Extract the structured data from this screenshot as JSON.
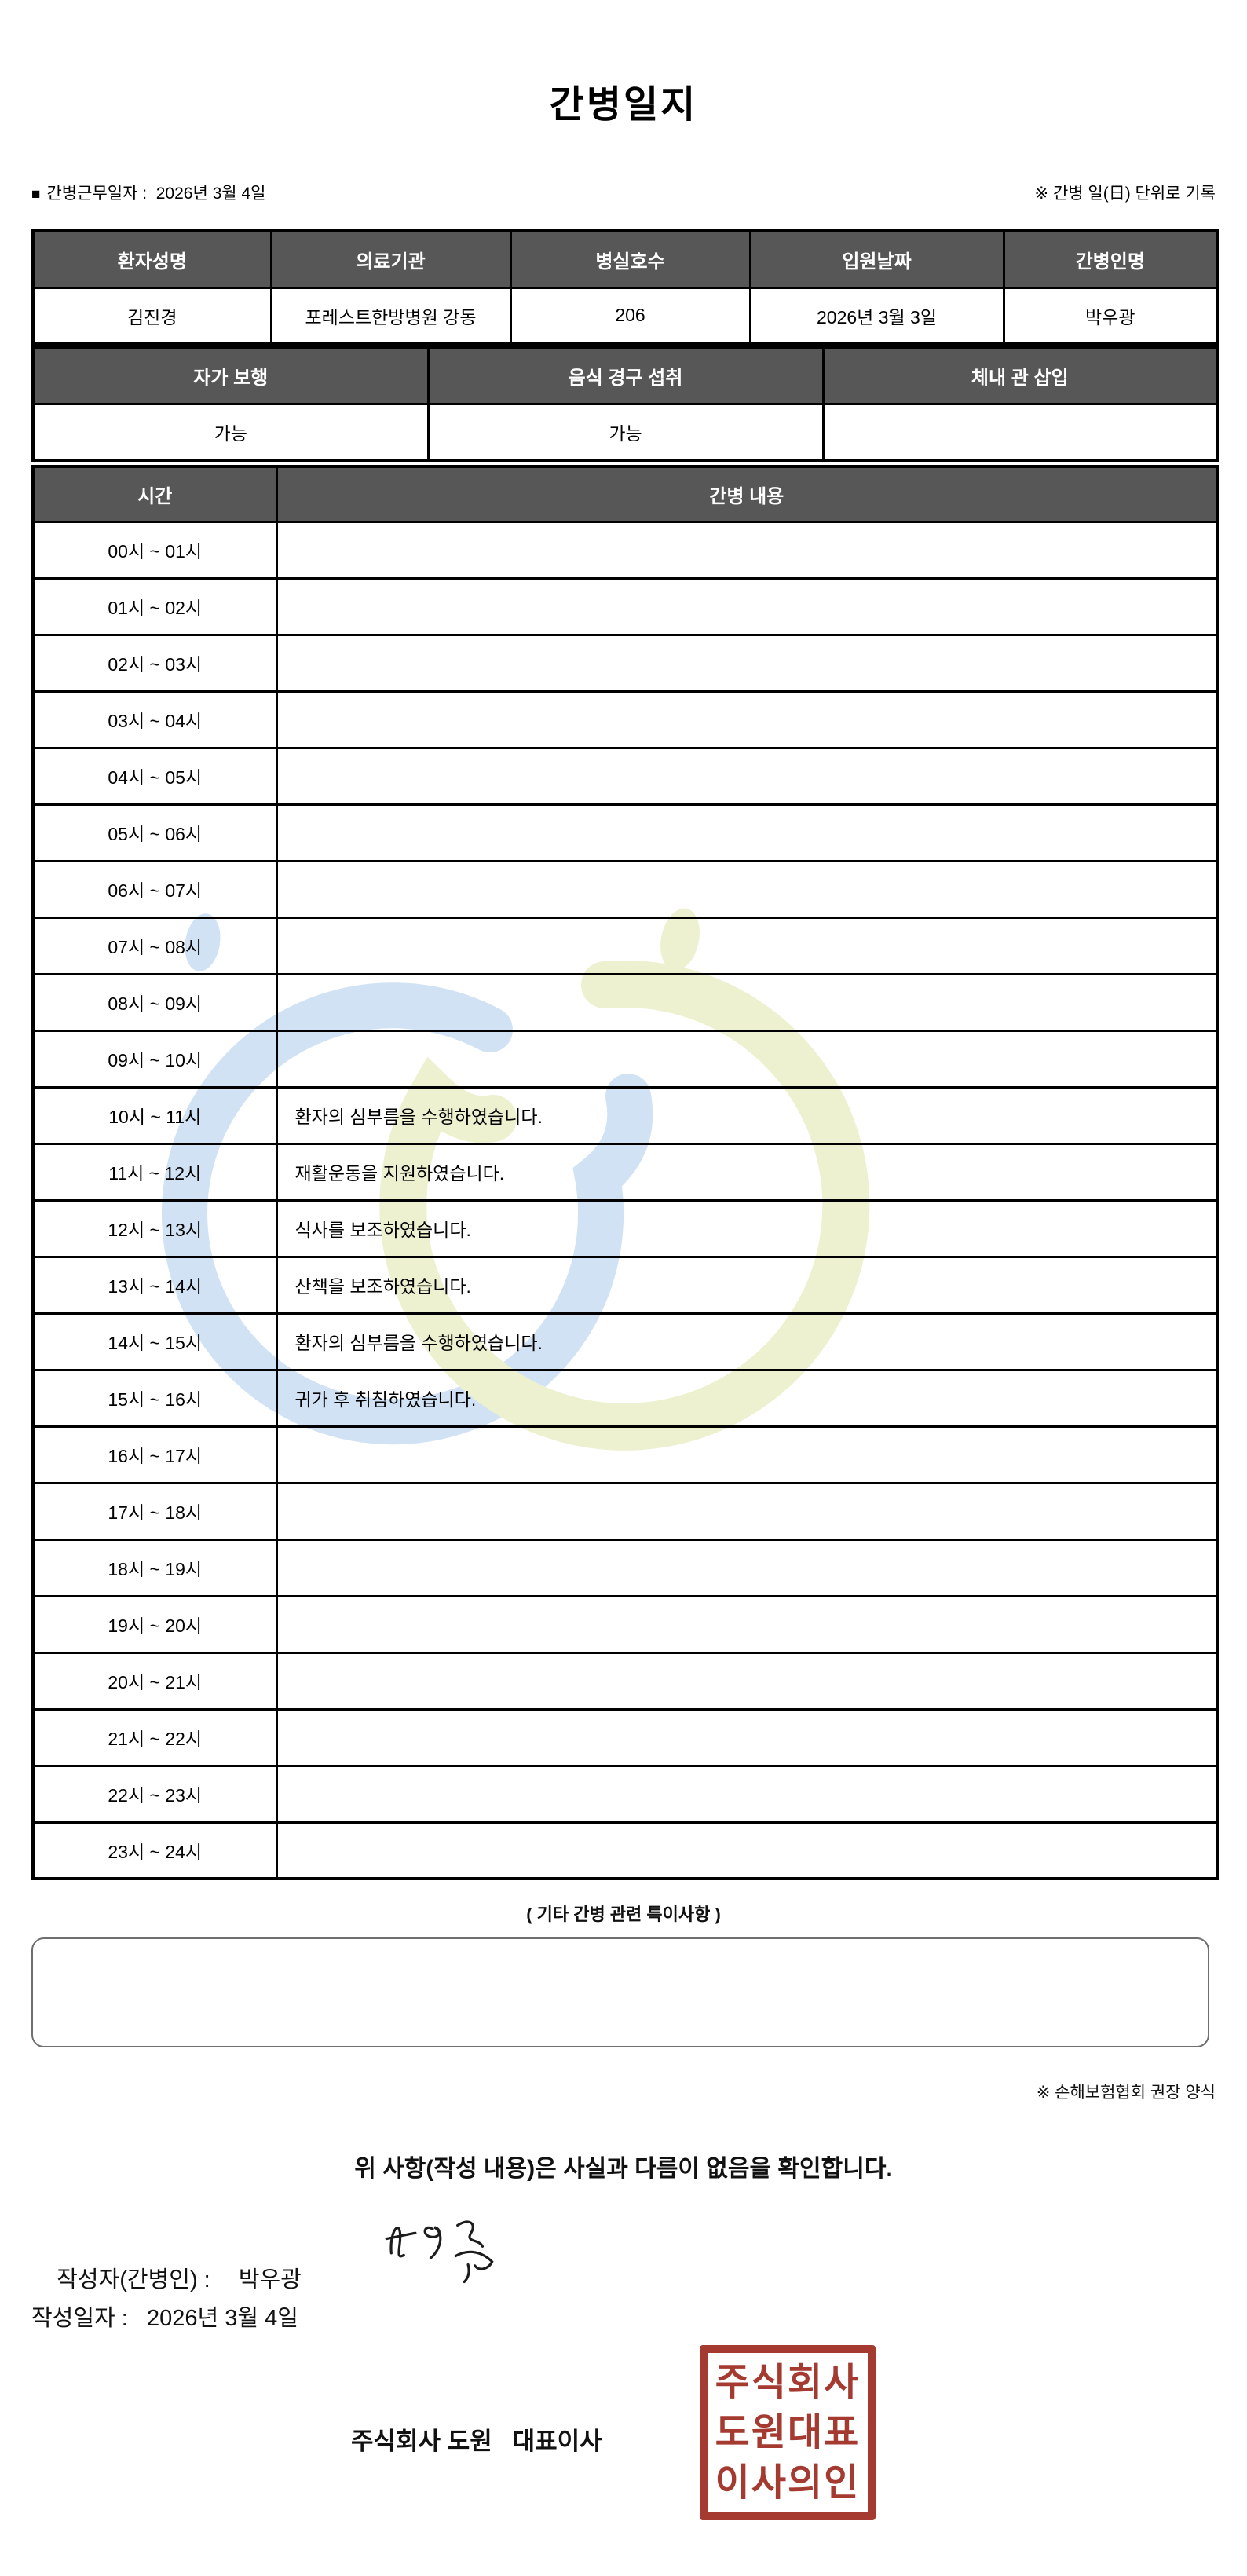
{
  "title": "간병일지",
  "meta": {
    "bullet": "■",
    "work_date_line": "간병근무일자 :  2026년 3월 4일",
    "unit_note": "※ 간병 일(日) 단위로 기록"
  },
  "patient_table": {
    "headers": [
      "환자성명",
      "의료기관",
      "병실호수",
      "입원날짜",
      "간병인명"
    ],
    "values": [
      "김진경",
      "포레스트한방병원 강동",
      "206",
      "2026년 3월 3일",
      "박우광"
    ]
  },
  "status_table": {
    "headers": [
      "자가 보행",
      "음식 경구 섭취",
      "체내 관 삽입"
    ],
    "values": [
      "가능",
      "가능",
      ""
    ]
  },
  "care_table": {
    "time_header": "시간",
    "content_header": "간병 내용",
    "rows": [
      {
        "time": "00시 ~ 01시",
        "content": ""
      },
      {
        "time": "01시 ~ 02시",
        "content": ""
      },
      {
        "time": "02시 ~ 03시",
        "content": ""
      },
      {
        "time": "03시 ~ 04시",
        "content": ""
      },
      {
        "time": "04시 ~ 05시",
        "content": ""
      },
      {
        "time": "05시 ~ 06시",
        "content": ""
      },
      {
        "time": "06시 ~ 07시",
        "content": ""
      },
      {
        "time": "07시 ~ 08시",
        "content": ""
      },
      {
        "time": "08시 ~ 09시",
        "content": ""
      },
      {
        "time": "09시 ~ 10시",
        "content": ""
      },
      {
        "time": "10시 ~ 11시",
        "content": "환자의 심부름을 수행하였습니다."
      },
      {
        "time": "11시 ~ 12시",
        "content": "재활운동을 지원하였습니다."
      },
      {
        "time": "12시 ~ 13시",
        "content": "식사를 보조하였습니다."
      },
      {
        "time": "13시 ~ 14시",
        "content": "산책을 보조하였습니다."
      },
      {
        "time": "14시 ~ 15시",
        "content": "환자의 심부름을 수행하였습니다."
      },
      {
        "time": "15시 ~ 16시",
        "content": "귀가 후 취침하였습니다."
      },
      {
        "time": "16시 ~ 17시",
        "content": ""
      },
      {
        "time": "17시 ~ 18시",
        "content": ""
      },
      {
        "time": "18시 ~ 19시",
        "content": ""
      },
      {
        "time": "19시 ~ 20시",
        "content": ""
      },
      {
        "time": "20시 ~ 21시",
        "content": ""
      },
      {
        "time": "21시 ~ 22시",
        "content": ""
      },
      {
        "time": "22시 ~ 23시",
        "content": ""
      },
      {
        "time": "23시 ~ 24시",
        "content": ""
      }
    ]
  },
  "notes": {
    "title": "( 기타 간병 관련 특이사항 )",
    "content": "",
    "form_note": "※ 손해보험협회 권장 양식"
  },
  "confirmation": {
    "statement": "위 사항(작성 내용)은 사실과 다름이 없음을 확인합니다.",
    "writer_label": "작성자(간병인) : ",
    "writer_name": "박우광",
    "date_line": "작성일자 :   2026년 3월 4일",
    "company_line": "주식회사 도원   대표이사"
  },
  "stamp": {
    "lines": [
      "주식회사",
      "도원대표",
      "이사의인"
    ],
    "color": "#a53a30"
  },
  "colors": {
    "table_header_bg": "#575757",
    "watermark_blue": "#d0e2f3",
    "watermark_yellow": "#edf1d0",
    "stamp_red": "#a53a30"
  }
}
